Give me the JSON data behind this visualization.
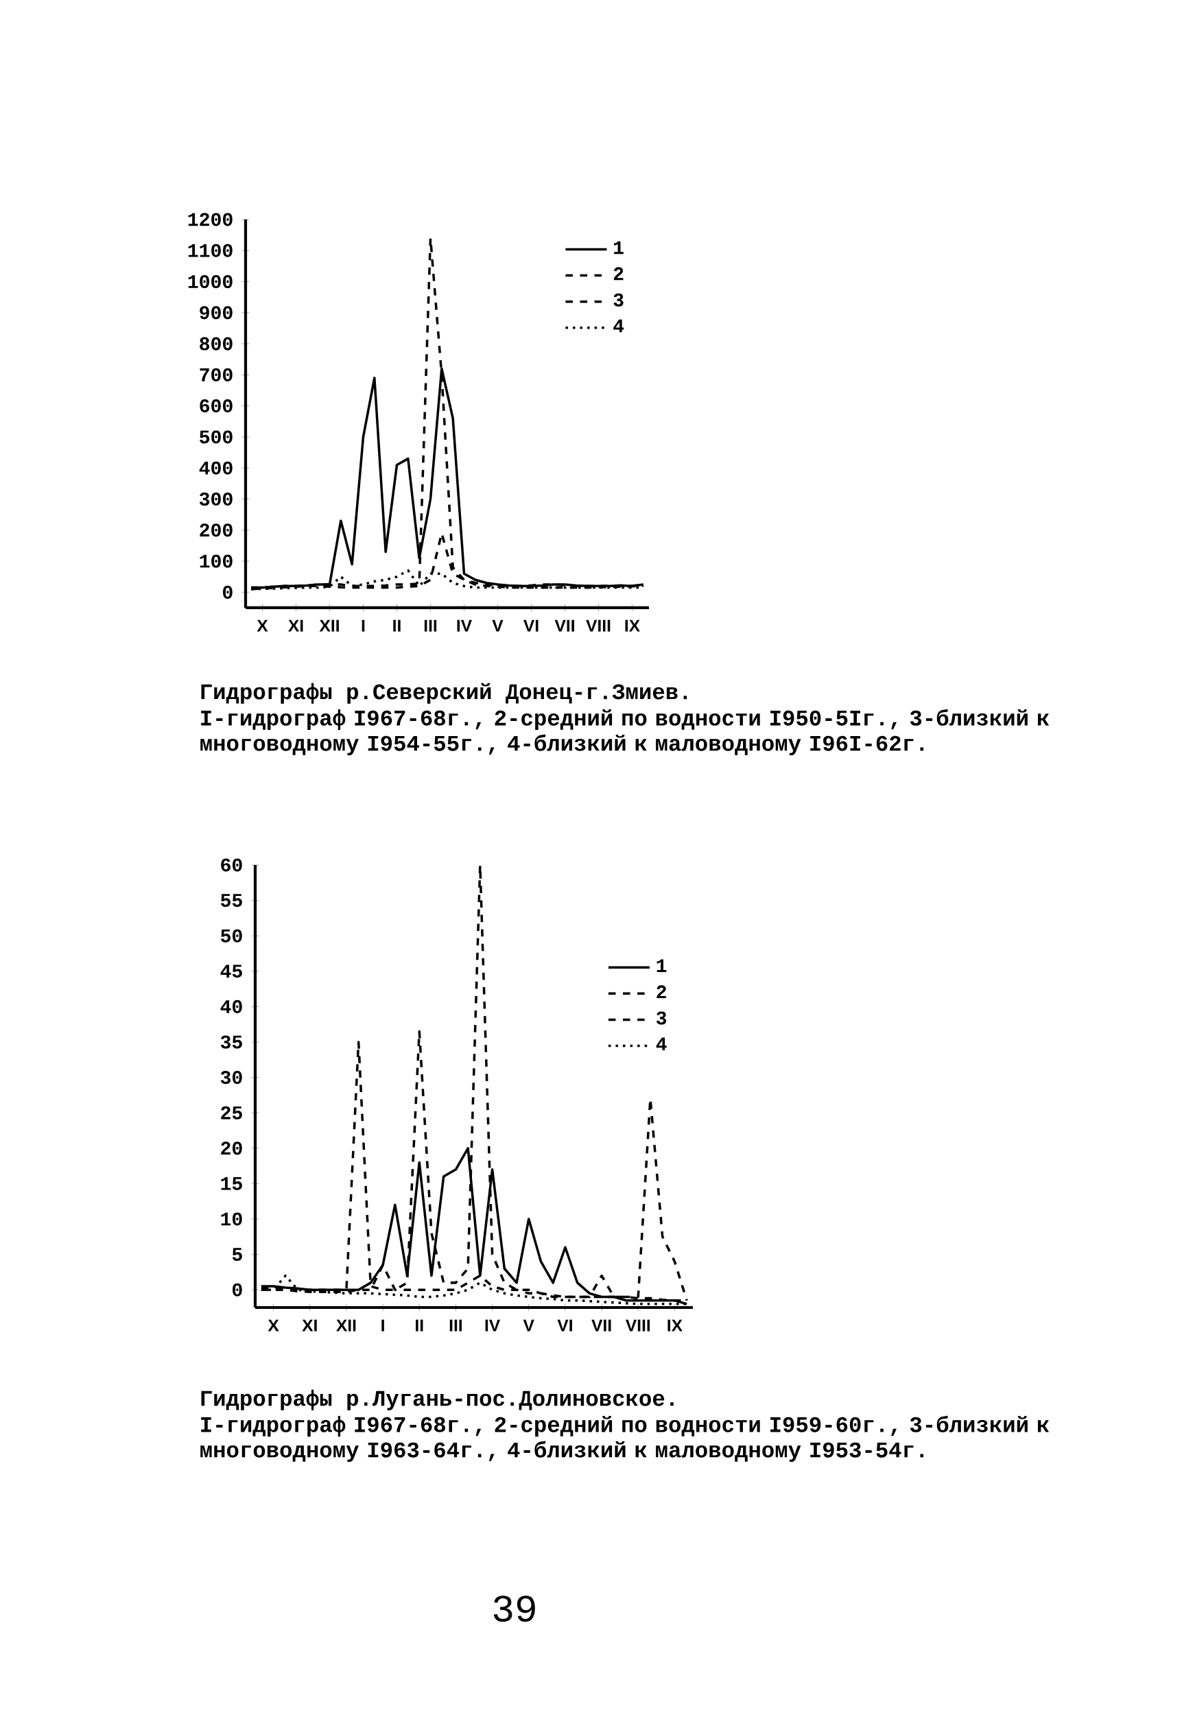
{
  "chart_data": [
    {
      "type": "line",
      "title": "Гидрографы р.Северский Донец-г.Змиев.",
      "annotations": [
        "I-гидрограф I967-68г., 2-средний по водности I950-5Iг., 3-близкий к многоводному I954-55г., 4-близкий к маловодному I96I-62г."
      ],
      "categories": [
        null,
        "X",
        null,
        null,
        "XI",
        null,
        null,
        "XII",
        null,
        null,
        "I",
        null,
        null,
        "II",
        null,
        null,
        "III",
        null,
        null,
        "IV",
        null,
        null,
        "V",
        null,
        null,
        "VI",
        null,
        null,
        "VII",
        null,
        null,
        "VIII",
        null,
        null,
        "IX",
        null
      ],
      "ylim": [
        -50,
        1200
      ],
      "yticks": [
        0,
        100,
        200,
        300,
        400,
        500,
        600,
        700,
        800,
        900,
        1000,
        1100,
        1200
      ],
      "legend": "top right",
      "series": [
        {
          "name": "1",
          "color": "#000000",
          "line_style": "solid",
          "values": [
            15,
            15,
            18,
            20,
            20,
            22,
            25,
            25,
            230,
            90,
            500,
            690,
            130,
            410,
            430,
            110,
            300,
            720,
            560,
            60,
            40,
            30,
            25,
            22,
            20,
            20,
            22,
            25,
            25,
            22,
            20,
            20,
            20,
            22,
            20,
            25
          ]
        },
        {
          "name": "2",
          "color": "#000000",
          "line_style": "dashed",
          "values": [
            15,
            15,
            18,
            20,
            20,
            22,
            25,
            25,
            25,
            20,
            20,
            20,
            22,
            25,
            25,
            28,
            1140,
            700,
            80,
            40,
            30,
            25,
            22,
            20,
            20,
            22,
            25,
            25,
            22,
            20,
            20,
            20,
            20,
            22,
            20,
            25
          ]
        },
        {
          "name": "3",
          "color": "#000000",
          "line_style": "dashed",
          "values": [
            10,
            12,
            14,
            16,
            18,
            20,
            20,
            18,
            16,
            15,
            15,
            15,
            15,
            15,
            18,
            20,
            40,
            190,
            60,
            40,
            25,
            20,
            18,
            16,
            15,
            15,
            15,
            15,
            15,
            15,
            15,
            16,
            17,
            18,
            19,
            20
          ]
        },
        {
          "name": "4",
          "color": "#000000",
          "line_style": "dotted",
          "values": [
            10,
            11,
            12,
            13,
            14,
            15,
            15,
            18,
            50,
            20,
            25,
            35,
            40,
            50,
            70,
            20,
            60,
            60,
            30,
            20,
            15,
            15,
            15,
            15,
            15,
            15,
            15,
            15,
            15,
            15,
            15,
            15,
            15,
            15,
            15,
            15
          ]
        }
      ]
    },
    {
      "type": "line",
      "title": "Гидрографы р.Лугань-пос.Долиновское.",
      "annotations": [
        "I-гидрограф I967-68г., 2-средний по водности I959-60г., 3-близкий к многоводному I963-64г., 4-близкий к маловодному I953-54г.",
        "39"
      ],
      "categories": [
        null,
        "X",
        null,
        null,
        "XI",
        null,
        null,
        "XII",
        null,
        null,
        "I",
        null,
        null,
        "II",
        null,
        null,
        "III",
        null,
        null,
        "IV",
        null,
        null,
        "V",
        null,
        null,
        "VI",
        null,
        null,
        "VII",
        null,
        null,
        "VIII",
        null,
        null,
        "IX",
        null
      ],
      "ylim": [
        -2.5,
        60
      ],
      "yticks": [
        0,
        5,
        10,
        15,
        20,
        25,
        30,
        35,
        40,
        45,
        50,
        55,
        60
      ],
      "legend": "right",
      "series": [
        {
          "name": "1",
          "color": "#000000",
          "line_style": "solid",
          "values": [
            0.5,
            0.5,
            0.3,
            0.2,
            0,
            0,
            0,
            0,
            0,
            1,
            3.5,
            12,
            2,
            18,
            2,
            16,
            17,
            20,
            2,
            17,
            3,
            1,
            10,
            4,
            1,
            6,
            1,
            -0.5,
            -1,
            -1,
            -1.5,
            -1.5,
            -1.5,
            -1.5,
            -1.5,
            -2
          ]
        },
        {
          "name": "2",
          "color": "#000000",
          "line_style": "dashed",
          "values": [
            0.3,
            0.2,
            0.1,
            0,
            0,
            0,
            0,
            0,
            35,
            0.5,
            0,
            0,
            1,
            36.5,
            8,
            1,
            1,
            3,
            60,
            5,
            1,
            0,
            0,
            -0.5,
            -1,
            -1,
            -1,
            -1,
            -1,
            -1,
            -1,
            -1,
            27,
            7.5,
            4,
            -1.5
          ]
        },
        {
          "name": "3",
          "color": "#000000",
          "line_style": "dashed",
          "values": [
            0,
            0,
            0,
            -0.2,
            -0.3,
            -0.3,
            -0.3,
            -0.3,
            0,
            0,
            3.5,
            0,
            0,
            0,
            0,
            0,
            0,
            1,
            2,
            0.5,
            0,
            0,
            -0.5,
            -0.5,
            -0.8,
            -1,
            -1,
            -1,
            2,
            -1,
            -1,
            -1.2,
            -1.2,
            -1.4,
            -1.5,
            -1.5
          ]
        },
        {
          "name": "4",
          "color": "#000000",
          "line_style": "dotted",
          "values": [
            0,
            0,
            2,
            0,
            -0.2,
            -0.3,
            -0.4,
            -0.5,
            -0.5,
            -0.5,
            -0.6,
            -0.7,
            -0.8,
            -1,
            -1,
            -0.8,
            -0.5,
            0,
            1,
            0,
            -0.5,
            -0.8,
            -1,
            -1.2,
            -1.3,
            -1.5,
            -1.5,
            -1.6,
            -1.7,
            -1.8,
            -1.9,
            -2,
            -2,
            -2,
            -2,
            -2
          ]
        }
      ]
    }
  ]
}
